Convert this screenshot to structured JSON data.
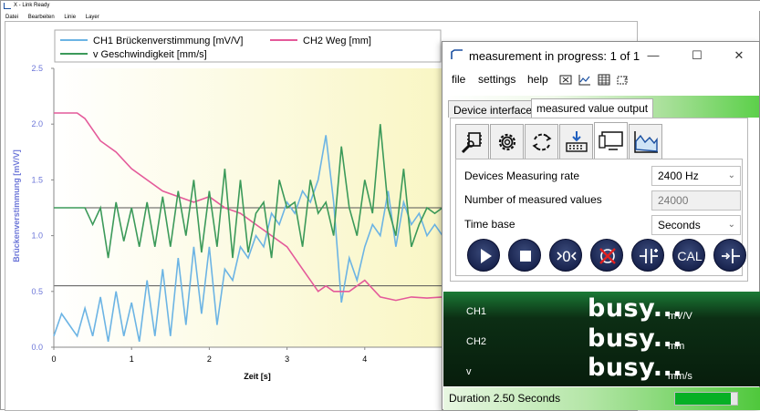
{
  "app": {
    "title": "X - Link Ready",
    "menu": [
      "Datei",
      "Bearbeiten",
      "Linie",
      "Layer"
    ]
  },
  "chart_data": {
    "type": "line",
    "xlabel": "Zeit [s]",
    "ylabel": "Brückenverstimmung [mV/V]",
    "xlim": [
      0,
      5.0
    ],
    "ylim": [
      0,
      2.5
    ],
    "x_ticks": [
      "0",
      "1",
      "2",
      "3",
      "4"
    ],
    "y_ticks": [
      "0.0",
      "0.5",
      "1.0",
      "1.5",
      "2.0",
      "2.5"
    ],
    "grid": false,
    "legend": "top-left",
    "series": [
      {
        "name": "CH1 Brückenverstimmung [mV/V]",
        "color": "#6cb4e4",
        "x": [
          0,
          0.1,
          0.2,
          0.3,
          0.4,
          0.5,
          0.6,
          0.7,
          0.8,
          0.9,
          1.0,
          1.1,
          1.2,
          1.3,
          1.4,
          1.5,
          1.6,
          1.7,
          1.8,
          1.9,
          2.0,
          2.1,
          2.2,
          2.3,
          2.4,
          2.5,
          2.6,
          2.7,
          2.8,
          2.9,
          3.0,
          3.1,
          3.2,
          3.3,
          3.4,
          3.5,
          3.6,
          3.7,
          3.8,
          3.9,
          4.0,
          4.1,
          4.2,
          4.3,
          4.4,
          4.5,
          4.6,
          4.7,
          4.8,
          4.9,
          5.0
        ],
        "values": [
          0.1,
          0.3,
          0.2,
          0.1,
          0.35,
          0.1,
          0.45,
          0.05,
          0.5,
          0.1,
          0.4,
          0.05,
          0.6,
          0.1,
          0.7,
          0.1,
          0.8,
          0.2,
          0.9,
          0.3,
          0.9,
          0.2,
          0.7,
          0.6,
          0.9,
          0.8,
          1.0,
          0.9,
          1.2,
          1.1,
          1.3,
          1.2,
          1.4,
          1.3,
          1.5,
          1.9,
          1.3,
          0.4,
          0.8,
          0.6,
          0.9,
          1.1,
          1.0,
          1.4,
          0.9,
          1.3,
          1.1,
          1.2,
          1.0,
          1.1,
          1.0
        ]
      },
      {
        "name": "CH2 Weg [mm]",
        "color": "#e45a9a",
        "x": [
          0,
          0.3,
          0.4,
          0.5,
          0.6,
          0.8,
          1.0,
          1.2,
          1.4,
          1.6,
          1.8,
          2.0,
          2.2,
          2.4,
          2.6,
          2.8,
          3.0,
          3.2,
          3.3,
          3.4,
          3.5,
          3.6,
          3.8,
          4.0,
          4.2,
          4.4,
          4.6,
          4.8,
          5.0
        ],
        "values": [
          2.1,
          2.1,
          2.05,
          1.95,
          1.85,
          1.75,
          1.6,
          1.5,
          1.4,
          1.35,
          1.3,
          1.35,
          1.25,
          1.2,
          1.1,
          1.0,
          0.9,
          0.7,
          0.6,
          0.5,
          0.55,
          0.5,
          0.5,
          0.6,
          0.45,
          0.42,
          0.45,
          0.44,
          0.45
        ]
      },
      {
        "name": "v Geschwindigkeit [mm/s]",
        "color": "#3c9a5a",
        "x": [
          0,
          0.4,
          0.5,
          0.6,
          0.7,
          0.8,
          0.9,
          1.0,
          1.1,
          1.2,
          1.3,
          1.4,
          1.5,
          1.6,
          1.7,
          1.8,
          1.9,
          2.0,
          2.1,
          2.2,
          2.3,
          2.4,
          2.5,
          2.6,
          2.7,
          2.8,
          2.9,
          3.0,
          3.1,
          3.2,
          3.3,
          3.4,
          3.5,
          3.6,
          3.7,
          3.8,
          3.9,
          4.0,
          4.1,
          4.2,
          4.3,
          4.4,
          4.5,
          4.6,
          4.7,
          4.8,
          4.9,
          5.0
        ],
        "values": [
          1.25,
          1.25,
          1.1,
          1.25,
          0.8,
          1.3,
          0.95,
          1.25,
          0.9,
          1.3,
          0.9,
          1.35,
          0.9,
          1.4,
          1.0,
          1.5,
          0.85,
          1.4,
          0.9,
          1.6,
          0.8,
          1.5,
          0.85,
          1.2,
          1.3,
          0.8,
          1.5,
          1.25,
          1.3,
          0.9,
          1.5,
          1.2,
          1.3,
          1.0,
          1.8,
          1.25,
          1.0,
          1.5,
          1.2,
          2.0,
          1.25,
          1.0,
          1.6,
          0.9,
          1.1,
          1.25,
          1.2,
          1.25
        ]
      }
    ],
    "reference_lines": [
      1.25,
      0.55
    ]
  },
  "dialog": {
    "title": "measurement in progress: 1 of 1",
    "menu": [
      "file",
      "settings",
      "help"
    ],
    "tabs": [
      "Device interface",
      "measured value output"
    ],
    "settings": {
      "rate_label": "Devices Measuring rate",
      "rate_value": "2400 Hz",
      "count_label": "Number of measured values",
      "count_value": "24000",
      "timebase_label": "Time base",
      "timebase_value": "Seconds"
    },
    "cal_label": "CAL",
    "channels": [
      {
        "name": "CH1",
        "value": "busy...",
        "unit": "mV/V"
      },
      {
        "name": "CH2",
        "value": "busy...",
        "unit": "mm"
      },
      {
        "name": "v",
        "value": "busy...",
        "unit": "mm/s"
      }
    ],
    "status": {
      "duration": "Duration 2.50 Seconds",
      "progress": 0.9
    }
  }
}
